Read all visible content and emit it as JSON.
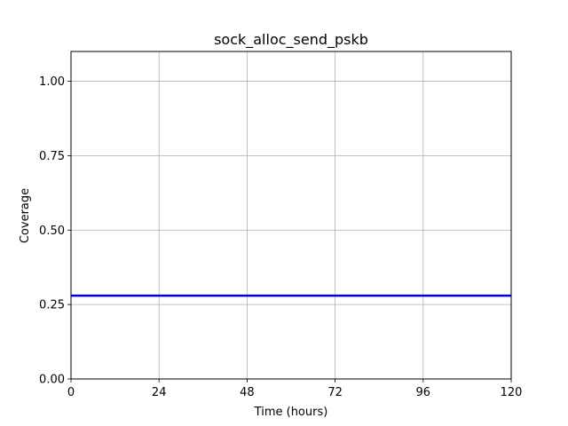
{
  "chart_data": {
    "type": "line",
    "title": "sock_alloc_send_pskb",
    "xlabel": "Time (hours)",
    "ylabel": "Coverage",
    "xlim": [
      0,
      120
    ],
    "ylim": [
      0,
      1.1
    ],
    "xticks": [
      0,
      24,
      48,
      72,
      96,
      120
    ],
    "xtick_labels": [
      "0",
      "24",
      "48",
      "72",
      "96",
      "120"
    ],
    "yticks": [
      0,
      0.25,
      0.5,
      0.75,
      1.0
    ],
    "ytick_labels": [
      "0.00",
      "0.25",
      "0.50",
      "0.75",
      "1.00"
    ],
    "grid": true,
    "series": [
      {
        "color": "#0000cc",
        "x": [
          0,
          120
        ],
        "y": [
          0.28,
          0.28
        ]
      }
    ]
  }
}
